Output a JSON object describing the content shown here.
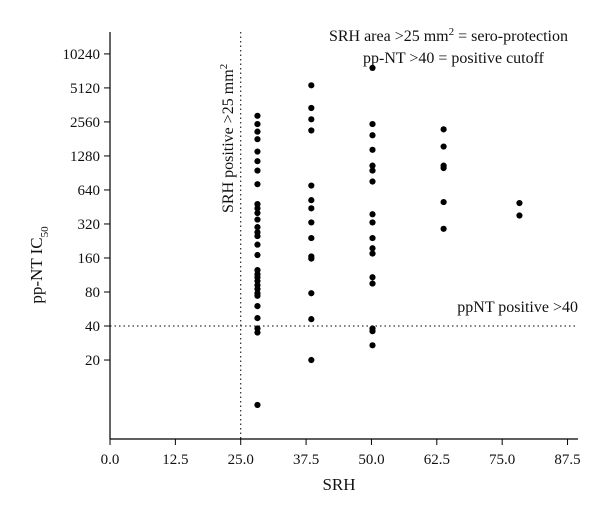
{
  "chart_data": {
    "type": "scatter",
    "xlabel": "SRH",
    "ylabel_main": "pp-NT IC",
    "ylabel_sub": "50",
    "y_scale": "log2",
    "xlim": [
      0.0,
      89.5
    ],
    "ylim": [
      4,
      16000
    ],
    "x_ticks": [
      0.0,
      12.5,
      25.0,
      37.5,
      50.0,
      62.5,
      75.0,
      87.5
    ],
    "x_tick_labels": [
      "0.0",
      "12.5",
      "25.0",
      "37.5",
      "50.0",
      "62.5",
      "75.0",
      "87.5"
    ],
    "y_ticks": [
      20,
      40,
      80,
      160,
      320,
      640,
      1280,
      2560,
      5120,
      10240
    ],
    "y_tick_labels": [
      "20",
      "40",
      "80",
      "160",
      "320",
      "640",
      "1280",
      "2560",
      "5120",
      "10240"
    ],
    "reference_lines": {
      "vertical_x": 25.0,
      "horizontal_y": 40
    },
    "annotations": {
      "legend_line1_a": "SRH area >25 mm",
      "legend_line1_sup": "2",
      "legend_line1_b": " = sero-protection",
      "legend_line2": "pp-NT >40 = positive cutoff",
      "horizontal_line_label": "ppNT positive >40",
      "vertical_line_label_a": "SRH positive >25 mm",
      "vertical_line_label_sup": "2"
    },
    "points": [
      {
        "x": 28.2,
        "y": 2900
      },
      {
        "x": 28.2,
        "y": 2450
      },
      {
        "x": 28.2,
        "y": 2100
      },
      {
        "x": 28.2,
        "y": 1800
      },
      {
        "x": 28.2,
        "y": 1400
      },
      {
        "x": 28.2,
        "y": 1150
      },
      {
        "x": 28.2,
        "y": 950
      },
      {
        "x": 28.2,
        "y": 720
      },
      {
        "x": 28.2,
        "y": 480
      },
      {
        "x": 28.2,
        "y": 440
      },
      {
        "x": 28.2,
        "y": 400
      },
      {
        "x": 28.2,
        "y": 350
      },
      {
        "x": 28.2,
        "y": 300
      },
      {
        "x": 28.2,
        "y": 270
      },
      {
        "x": 28.2,
        "y": 250
      },
      {
        "x": 28.2,
        "y": 210
      },
      {
        "x": 28.2,
        "y": 170
      },
      {
        "x": 28.2,
        "y": 125
      },
      {
        "x": 28.2,
        "y": 115
      },
      {
        "x": 28.2,
        "y": 108
      },
      {
        "x": 28.2,
        "y": 100
      },
      {
        "x": 28.2,
        "y": 92
      },
      {
        "x": 28.2,
        "y": 85
      },
      {
        "x": 28.2,
        "y": 78
      },
      {
        "x": 28.2,
        "y": 74
      },
      {
        "x": 28.2,
        "y": 60
      },
      {
        "x": 28.2,
        "y": 47
      },
      {
        "x": 28.2,
        "y": 38
      },
      {
        "x": 28.2,
        "y": 35
      },
      {
        "x": 28.2,
        "y": 8
      },
      {
        "x": 38.5,
        "y": 5400
      },
      {
        "x": 38.5,
        "y": 3400
      },
      {
        "x": 38.5,
        "y": 2700
      },
      {
        "x": 38.5,
        "y": 2150
      },
      {
        "x": 38.5,
        "y": 700
      },
      {
        "x": 38.5,
        "y": 520
      },
      {
        "x": 38.5,
        "y": 440
      },
      {
        "x": 38.5,
        "y": 330
      },
      {
        "x": 38.5,
        "y": 240
      },
      {
        "x": 38.5,
        "y": 165
      },
      {
        "x": 38.5,
        "y": 158
      },
      {
        "x": 38.5,
        "y": 78
      },
      {
        "x": 38.5,
        "y": 46
      },
      {
        "x": 38.5,
        "y": 20
      },
      {
        "x": 50.2,
        "y": 7700
      },
      {
        "x": 50.2,
        "y": 2450
      },
      {
        "x": 50.2,
        "y": 1950
      },
      {
        "x": 50.2,
        "y": 1450
      },
      {
        "x": 50.2,
        "y": 1050
      },
      {
        "x": 50.2,
        "y": 950
      },
      {
        "x": 50.2,
        "y": 760
      },
      {
        "x": 50.2,
        "y": 390
      },
      {
        "x": 50.2,
        "y": 330
      },
      {
        "x": 50.2,
        "y": 240
      },
      {
        "x": 50.2,
        "y": 195
      },
      {
        "x": 50.2,
        "y": 175
      },
      {
        "x": 50.2,
        "y": 108
      },
      {
        "x": 50.2,
        "y": 95
      },
      {
        "x": 50.2,
        "y": 38
      },
      {
        "x": 50.2,
        "y": 36
      },
      {
        "x": 50.2,
        "y": 27
      },
      {
        "x": 63.8,
        "y": 2200
      },
      {
        "x": 63.8,
        "y": 1550
      },
      {
        "x": 63.8,
        "y": 1050
      },
      {
        "x": 63.8,
        "y": 1000
      },
      {
        "x": 63.8,
        "y": 500
      },
      {
        "x": 63.8,
        "y": 290
      },
      {
        "x": 78.3,
        "y": 490
      },
      {
        "x": 78.3,
        "y": 380
      }
    ]
  }
}
